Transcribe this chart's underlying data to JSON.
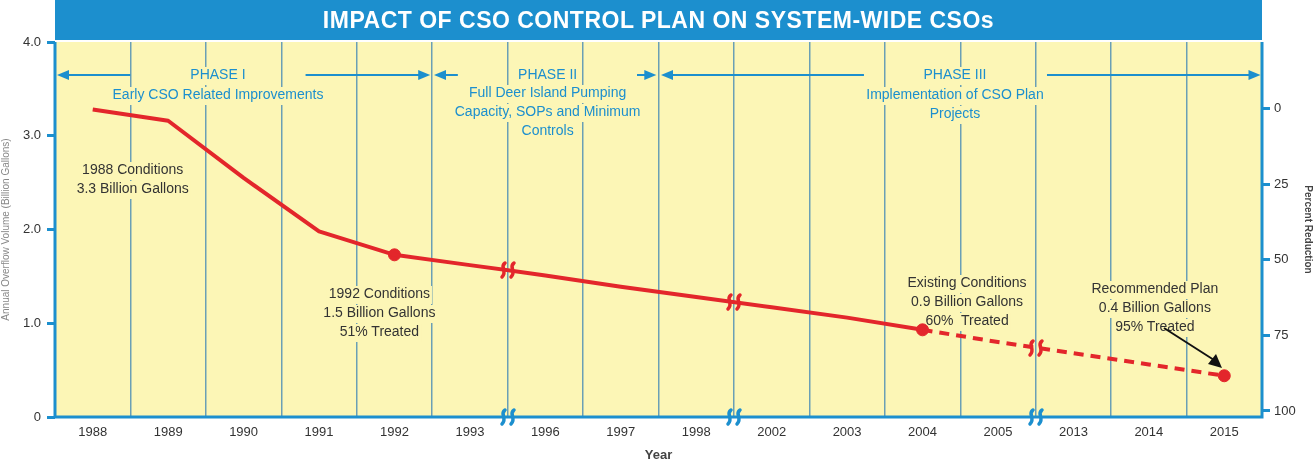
{
  "chart_data": {
    "type": "line",
    "title": "IMPACT OF CSO CONTROL PLAN ON SYSTEM-WIDE CSOs",
    "xlabel": "Year",
    "ylabel": "Annual Overflow Volume (Billion Gallons)",
    "y2label": "Percent Reduction",
    "categories": [
      "1988",
      "1989",
      "1990",
      "1991",
      "1992",
      "1993",
      "1996",
      "1997",
      "1998",
      "2002",
      "2003",
      "2004",
      "2005",
      "2013",
      "2014",
      "2015"
    ],
    "series": [
      {
        "color": "#e3262b",
        "line_style": "solid",
        "values": [
          3.28,
          3.16,
          2.55,
          1.98,
          1.73,
          1.62,
          1.51,
          1.39,
          1.28,
          1.17,
          1.06,
          0.93,
          null,
          null,
          null,
          null
        ]
      },
      {
        "color": "#e3262b",
        "line_style": "dashed",
        "values": [
          null,
          null,
          null,
          null,
          null,
          null,
          null,
          null,
          null,
          null,
          null,
          0.93,
          0.8,
          0.68,
          0.56,
          0.44
        ]
      },
      {
        "type": "scatter",
        "marker": "circle",
        "color": "#e3262b",
        "values": [
          null,
          null,
          null,
          null,
          1.73,
          null,
          null,
          null,
          null,
          null,
          null,
          0.93,
          null,
          null,
          null,
          0.44
        ]
      }
    ],
    "ylim": [
      0,
      4
    ],
    "yticks": [
      0,
      {
        "value": 1,
        "label": "1.0"
      },
      {
        "value": 2,
        "label": "2.0"
      },
      {
        "value": 3,
        "label": "3.0"
      },
      {
        "value": 4,
        "label": "4.0"
      }
    ],
    "y2lim": [
      102,
      -22
    ],
    "y2ticks": [
      0,
      25,
      50,
      75,
      100
    ],
    "grid": "x",
    "marker": "none",
    "annotations": [
      "PHASE I",
      "Early CSO Related Improvements",
      "PHASE II",
      "Full Deer Island Pumping\nCapacity, SOPs and Minimum\nControls",
      "PHASE III",
      "Implementation of CSO Plan\nProjects",
      "1988 Conditions\n3.3 Billion Gallons",
      "1992 Conditions\n1.5 Billion Gallons\n51% Treated",
      "Existing Conditions\n0.9 Billion Gallons\n60%  Treated",
      "Recommended Plan\n0.4 Billion Gallons\n95% Treated"
    ]
  }
}
